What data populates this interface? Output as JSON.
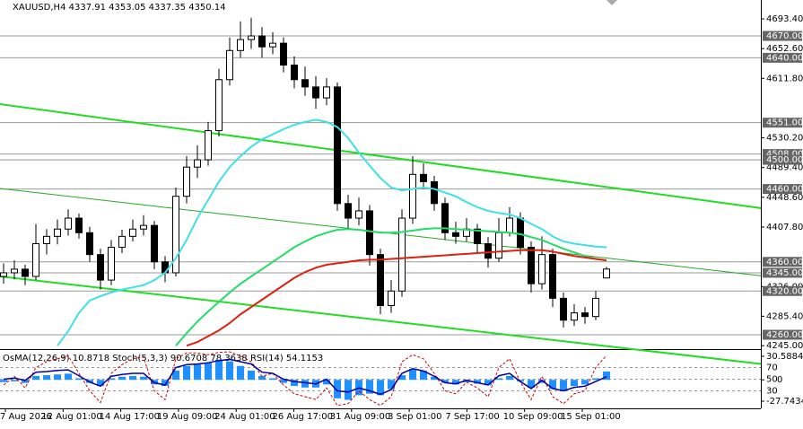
{
  "chart_data": {
    "type": "candlestick",
    "title": "XAUUSD,H4  4337.91 4353.05 4337.35 4350.14",
    "ylim": [
      4241.5,
      4719.3
    ],
    "yticks": [
      {
        "value": 4693.4,
        "label": "4693.40"
      },
      {
        "value": 4652.6,
        "label": "4652.60"
      },
      {
        "value": 4611.8,
        "label": "4611.80"
      },
      {
        "value": 4530.2,
        "label": "4530.20"
      },
      {
        "value": 4489.4,
        "label": "4489.40"
      },
      {
        "value": 4448.6,
        "label": "4448.60"
      },
      {
        "value": 4407.8,
        "label": "4407.80"
      },
      {
        "value": 4326,
        "label": "4326.00"
      },
      {
        "value": 4285.4,
        "label": "4285.40"
      },
      {
        "value": 4245,
        "label": "4245.00"
      }
    ],
    "levels": [
      {
        "value": 4670,
        "label": "4670.00"
      },
      {
        "value": 4640,
        "label": "4640.00"
      },
      {
        "value": 4551,
        "label": "4551.00"
      },
      {
        "value": 4508,
        "label": "4508.00"
      },
      {
        "value": 4500,
        "label": "4500.00"
      },
      {
        "value": 4460,
        "label": "4460.00"
      },
      {
        "value": 4360,
        "label": "4360.00"
      },
      {
        "value": 4345,
        "label": "4345.00"
      },
      {
        "value": 4320,
        "label": "4320.00"
      },
      {
        "value": 4260,
        "label": "4260.00"
      }
    ],
    "xticks": [
      "7 Aug 2026",
      "12 Aug 01:00",
      "14 Aug 17:00",
      "19 Aug 09:00",
      "24 Aug 01:00",
      "26 Aug 17:00",
      "31 Aug 09:00",
      "3 Sep 01:00",
      "7 Sep 17:00",
      "10 Sep 09:00",
      "15 Sep 01:00"
    ],
    "ohlc": [
      [
        4340,
        4358,
        4330,
        4345
      ],
      [
        4345,
        4362,
        4336,
        4350
      ],
      [
        4350,
        4356,
        4328,
        4340
      ],
      [
        4340,
        4412,
        4335,
        4385
      ],
      [
        4385,
        4405,
        4370,
        4395
      ],
      [
        4395,
        4418,
        4384,
        4405
      ],
      [
        4405,
        4432,
        4396,
        4420
      ],
      [
        4420,
        4426,
        4392,
        4400
      ],
      [
        4400,
        4408,
        4360,
        4370
      ],
      [
        4370,
        4378,
        4322,
        4335
      ],
      [
        4335,
        4390,
        4328,
        4380
      ],
      [
        4380,
        4404,
        4372,
        4395
      ],
      [
        4395,
        4418,
        4388,
        4405
      ],
      [
        4405,
        4424,
        4396,
        4410
      ],
      [
        4410,
        4416,
        4350,
        4360
      ],
      [
        4360,
        4368,
        4332,
        4345
      ],
      [
        4345,
        4462,
        4340,
        4450
      ],
      [
        4450,
        4505,
        4440,
        4490
      ],
      [
        4490,
        4520,
        4475,
        4500
      ],
      [
        4500,
        4552,
        4492,
        4540
      ],
      [
        4540,
        4625,
        4532,
        4610
      ],
      [
        4610,
        4668,
        4602,
        4650
      ],
      [
        4650,
        4690,
        4640,
        4665
      ],
      [
        4665,
        4695,
        4652,
        4670
      ],
      [
        4670,
        4682,
        4640,
        4655
      ],
      [
        4655,
        4675,
        4645,
        4660
      ],
      [
        4660,
        4668,
        4620,
        4630
      ],
      [
        4630,
        4642,
        4598,
        4610
      ],
      [
        4610,
        4628,
        4588,
        4600
      ],
      [
        4600,
        4615,
        4570,
        4585
      ],
      [
        4585,
        4612,
        4575,
        4600
      ],
      [
        4600,
        4606,
        4430,
        4440
      ],
      [
        4440,
        4452,
        4405,
        4420
      ],
      [
        4420,
        4448,
        4410,
        4430
      ],
      [
        4430,
        4438,
        4355,
        4370
      ],
      [
        4370,
        4378,
        4288,
        4300
      ],
      [
        4300,
        4335,
        4290,
        4320
      ],
      [
        4320,
        4432,
        4312,
        4420
      ],
      [
        4420,
        4505,
        4412,
        4480
      ],
      [
        4480,
        4495,
        4460,
        4470
      ],
      [
        4470,
        4478,
        4430,
        4440
      ],
      [
        4440,
        4448,
        4390,
        4400
      ],
      [
        4400,
        4415,
        4385,
        4395
      ],
      [
        4395,
        4420,
        4388,
        4405
      ],
      [
        4405,
        4412,
        4372,
        4385
      ],
      [
        4385,
        4394,
        4352,
        4365
      ],
      [
        4365,
        4420,
        4360,
        4400
      ],
      [
        4400,
        4435,
        4395,
        4420
      ],
      [
        4420,
        4428,
        4370,
        4380
      ],
      [
        4380,
        4388,
        4318,
        4330
      ],
      [
        4330,
        4395,
        4322,
        4370
      ],
      [
        4370,
        4378,
        4298,
        4310
      ],
      [
        4310,
        4318,
        4270,
        4280
      ],
      [
        4280,
        4302,
        4272,
        4290
      ],
      [
        4290,
        4298,
        4275,
        4285
      ],
      [
        4285,
        4320,
        4280,
        4310
      ],
      [
        4337.91,
        4353.05,
        4337.35,
        4350.14
      ]
    ],
    "series": [
      {
        "color": "#3fe0e8",
        "values": [
          null,
          null,
          null,
          null,
          null,
          4245,
          4265,
          4290,
          4307,
          4313,
          4318,
          4322,
          4325,
          4328,
          4335,
          4345,
          4365,
          4390,
          4420,
          4445,
          4470,
          4490,
          4505,
          4518,
          4528,
          4535,
          4542,
          4548,
          4552,
          4555,
          4552,
          4545,
          4530,
          4510,
          4492,
          4475,
          4462,
          4458,
          4460,
          4462,
          4460,
          4455,
          4450,
          4442,
          4435,
          4430,
          4427,
          4425,
          4420,
          4412,
          4405,
          4395,
          4388,
          4385,
          4383,
          4381,
          4380
        ]
      },
      {
        "color": "#22dd66",
        "values": [
          null,
          null,
          null,
          null,
          null,
          null,
          null,
          null,
          null,
          null,
          null,
          null,
          null,
          null,
          null,
          null,
          4245,
          4262,
          4278,
          4292,
          4305,
          4318,
          4330,
          4340,
          4350,
          4360,
          4370,
          4380,
          4388,
          4395,
          4400,
          4404,
          4405,
          4404,
          4402,
          4400,
          4400,
          4401,
          4403,
          4405,
          4406,
          4406,
          4405,
          4404,
          4403,
          4402,
          4401,
          4400,
          4398,
          4394,
          4390,
          4384,
          4378,
          4373,
          4368,
          4364,
          4362
        ]
      },
      {
        "color": "#dd2211",
        "values": [
          null,
          null,
          null,
          null,
          null,
          null,
          null,
          null,
          null,
          null,
          null,
          null,
          null,
          null,
          null,
          null,
          null,
          4245,
          4250,
          4258,
          4266,
          4276,
          4288,
          4298,
          4308,
          4318,
          4328,
          4338,
          4346,
          4352,
          4356,
          4358,
          4360,
          4362,
          4363,
          4363,
          4364,
          4365,
          4366,
          4367,
          4368,
          4369,
          4370,
          4371,
          4372,
          4373,
          4374,
          4375,
          4376,
          4376,
          4376,
          4374,
          4371,
          4368,
          4366,
          4364,
          4362
        ]
      }
    ],
    "trendlines": [
      {
        "color": "#22dd22",
        "values": [
          4576.5,
          4433.7
        ]
      },
      {
        "color": "#22aa22",
        "values": [
          4460.7,
          4341.0
        ]
      },
      {
        "color": "#22dd22",
        "values": [
          4340.1,
          4220.0
        ]
      }
    ],
    "indicator": {
      "title": "OsMA(12,26,9) 10.8718 Stoch(5,3,3) 90.6708 78.3638 RSI(14) 54.1153",
      "ylim": [
        0,
        100
      ],
      "yticks": [
        70,
        50,
        30
      ],
      "osma": {
        "color": "#1e90ff",
        "ylim": [
          -27.7434,
          30.5884
        ],
        "yticks": [
          30.5884,
          0,
          -27.7434
        ],
        "values": [
          -3,
          -2,
          -4,
          5,
          6,
          7,
          8,
          2,
          -4,
          -8,
          2,
          4,
          5,
          4,
          -6,
          -8,
          12,
          18,
          20,
          22,
          26,
          24,
          18,
          12,
          5,
          2,
          -4,
          -8,
          -10,
          -10,
          -6,
          -24,
          -26,
          -20,
          -18,
          -20,
          -12,
          6,
          14,
          12,
          4,
          -4,
          -6,
          -3,
          -5,
          -7,
          2,
          5,
          -2,
          -10,
          -4,
          -12,
          -14,
          -8,
          -6,
          2,
          10.8718
        ]
      },
      "series": [
        {
          "color": "#cc0000",
          "values": [
            40,
            55,
            35,
            70,
            80,
            85,
            90,
            60,
            30,
            10,
            60,
            75,
            85,
            88,
            30,
            15,
            85,
            95,
            95,
            92,
            96,
            97,
            90,
            80,
            55,
            60,
            40,
            25,
            20,
            15,
            35,
            5,
            8,
            30,
            15,
            5,
            20,
            80,
            92,
            85,
            60,
            30,
            25,
            45,
            35,
            20,
            70,
            85,
            45,
            15,
            55,
            20,
            8,
            25,
            30,
            70,
            90.6708
          ]
        },
        {
          "color": "#000099",
          "values": [
            50,
            52,
            48,
            62,
            63,
            65,
            66,
            56,
            45,
            38,
            55,
            58,
            60,
            60,
            44,
            40,
            70,
            75,
            76,
            78,
            82,
            84,
            80,
            76,
            62,
            60,
            50,
            46,
            44,
            42,
            50,
            30,
            28,
            35,
            30,
            24,
            32,
            60,
            68,
            64,
            55,
            44,
            42,
            48,
            44,
            40,
            56,
            60,
            46,
            34,
            48,
            34,
            30,
            36,
            38,
            46,
            54.1153
          ]
        }
      ]
    }
  }
}
